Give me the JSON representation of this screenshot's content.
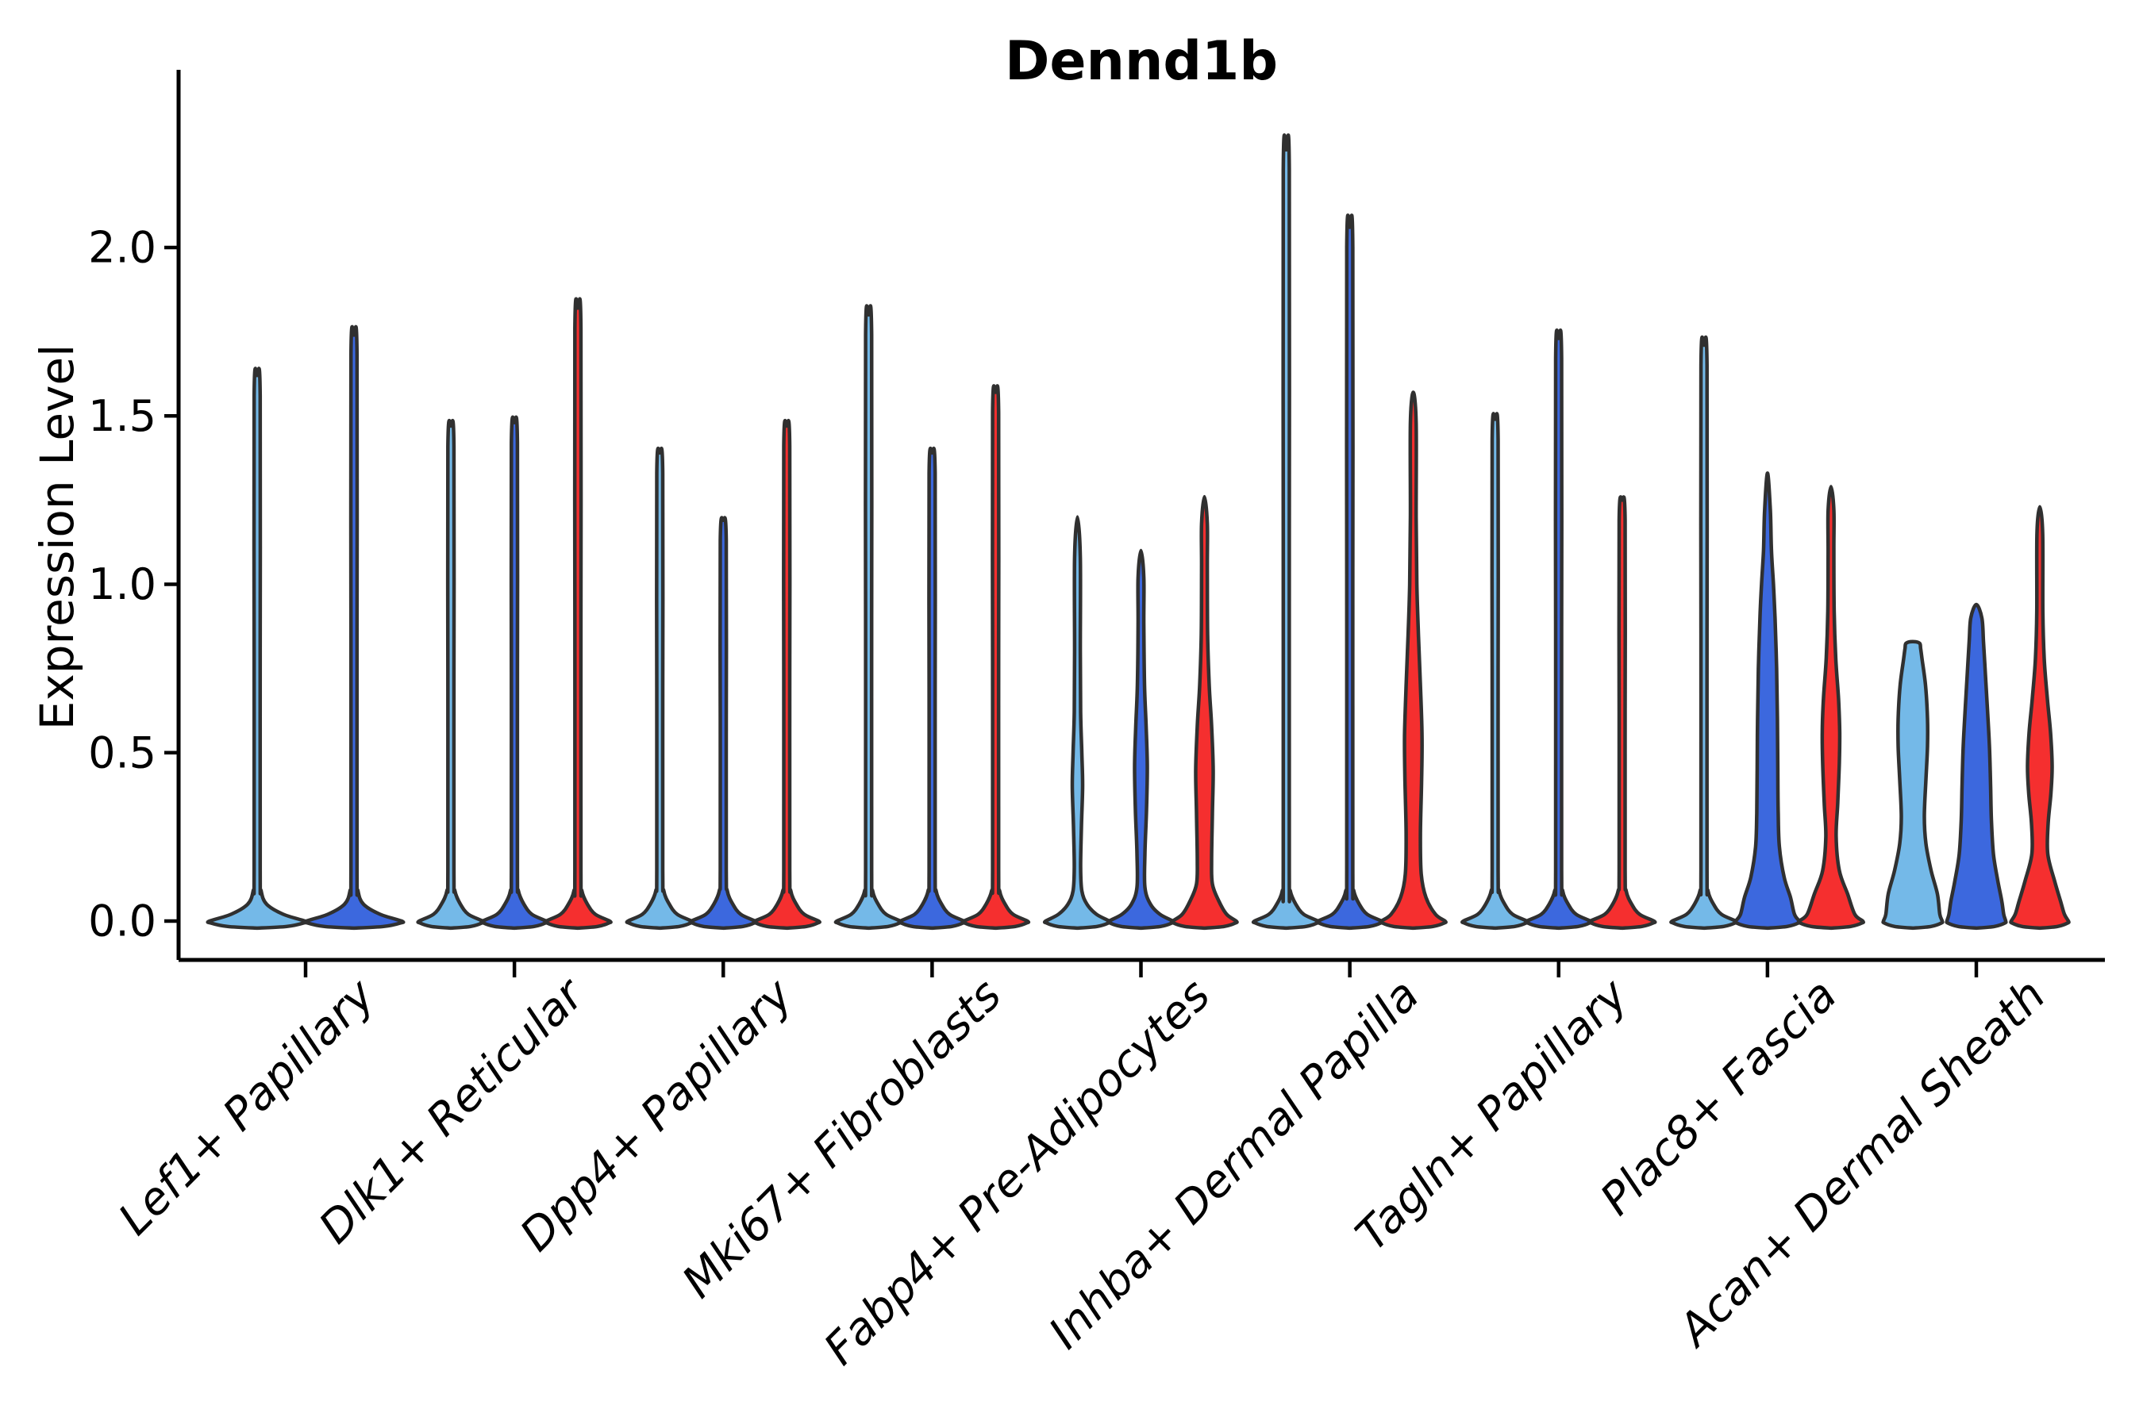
{
  "page": {
    "background": "#ffffff"
  },
  "chart_data": {
    "type": "violin",
    "title": "Dennd1b",
    "ylabel": "Expression Level",
    "xlabel": "",
    "grid": false,
    "legend": "none",
    "yticks": [
      "0.0",
      "0.5",
      "1.0",
      "1.5",
      "2.0"
    ],
    "ytick_values": [
      0.0,
      0.5,
      1.0,
      1.5,
      2.0
    ],
    "ylim": [
      -0.12,
      2.54
    ],
    "palette": {
      "lightblue": "#74b9e8",
      "blue": "#3c68de",
      "red": "#f52f2f",
      "outline": "#303030",
      "axis": "#000000"
    },
    "groups": [
      {
        "label": "Lef1+ Papillary",
        "violins": [
          {
            "color": "lightblue",
            "max": 1.62,
            "base_halfwidth": 60,
            "body": null
          },
          {
            "color": "blue",
            "max": 1.74,
            "base_halfwidth": 60,
            "body": null
          }
        ]
      },
      {
        "label": "Dlk1+ Reticular",
        "violins": [
          {
            "color": "lightblue",
            "max": 1.47,
            "base_halfwidth": 40,
            "body": null
          },
          {
            "color": "blue",
            "max": 1.48,
            "base_halfwidth": 40,
            "body": null
          },
          {
            "color": "red",
            "max": 1.82,
            "base_halfwidth": 40,
            "body": null
          }
        ]
      },
      {
        "label": "Dpp4+ Papillary",
        "violins": [
          {
            "color": "lightblue",
            "max": 1.39,
            "base_halfwidth": 40,
            "body": null
          },
          {
            "color": "blue",
            "max": 1.19,
            "base_halfwidth": 40,
            "body": null
          },
          {
            "color": "red",
            "max": 1.47,
            "base_halfwidth": 40,
            "body": null
          }
        ]
      },
      {
        "label": "Mki67+ Fibroblasts",
        "violins": [
          {
            "color": "lightblue",
            "max": 1.8,
            "base_halfwidth": 40,
            "body": null
          },
          {
            "color": "blue",
            "max": 1.39,
            "base_halfwidth": 40,
            "body": null
          },
          {
            "color": "red",
            "max": 1.57,
            "base_halfwidth": 40,
            "body": null
          }
        ]
      },
      {
        "label": "Fabp4+ Pre-Adipocytes",
        "violins": [
          {
            "color": "lightblue",
            "max": 1.2,
            "base_halfwidth": 40,
            "body": [
              [
                0.02,
                24
              ],
              [
                0.05,
                12
              ],
              [
                0.09,
                5.5
              ],
              [
                0.16,
                4
              ],
              [
                0.28,
                5
              ],
              [
                0.4,
                6.5
              ],
              [
                0.5,
                5.5
              ],
              [
                0.62,
                4
              ],
              [
                0.8,
                3.6
              ],
              [
                1.08,
                3.6
              ],
              [
                1.2,
                0
              ]
            ]
          },
          {
            "color": "blue",
            "max": 1.1,
            "base_halfwidth": 40,
            "body": [
              [
                0.02,
                24
              ],
              [
                0.05,
                12
              ],
              [
                0.1,
                5
              ],
              [
                0.2,
                5
              ],
              [
                0.33,
                7
              ],
              [
                0.46,
                8
              ],
              [
                0.58,
                6.5
              ],
              [
                0.7,
                4.5
              ],
              [
                0.88,
                3.6
              ],
              [
                1.02,
                3.6
              ],
              [
                1.1,
                0
              ]
            ]
          },
          {
            "color": "red",
            "max": 1.26,
            "base_halfwidth": 40,
            "body": [
              [
                0.02,
                28
              ],
              [
                0.06,
                18
              ],
              [
                0.11,
                10
              ],
              [
                0.18,
                9
              ],
              [
                0.32,
                10
              ],
              [
                0.45,
                11
              ],
              [
                0.58,
                9
              ],
              [
                0.7,
                6
              ],
              [
                0.85,
                4
              ],
              [
                1.05,
                3.6
              ],
              [
                1.18,
                3.6
              ],
              [
                1.26,
                0
              ]
            ]
          }
        ]
      },
      {
        "label": "Inhba+ Dermal Papilla",
        "violins": [
          {
            "color": "lightblue",
            "max": 2.29,
            "base_halfwidth": 40,
            "body": null
          },
          {
            "color": "blue",
            "max": 2.06,
            "base_halfwidth": 40,
            "body": null
          },
          {
            "color": "red",
            "max": 1.57,
            "base_halfwidth": 40,
            "body": [
              [
                0.02,
                28
              ],
              [
                0.07,
                16
              ],
              [
                0.14,
                10
              ],
              [
                0.26,
                9
              ],
              [
                0.42,
                10.5
              ],
              [
                0.55,
                11
              ],
              [
                0.7,
                9
              ],
              [
                0.85,
                6.5
              ],
              [
                1.0,
                4.5
              ],
              [
                1.2,
                3.6
              ],
              [
                1.48,
                3.6
              ],
              [
                1.57,
                0
              ]
            ]
          }
        ]
      },
      {
        "label": "Tagln+ Papillary",
        "violins": [
          {
            "color": "lightblue",
            "max": 1.49,
            "base_halfwidth": 40,
            "body": null
          },
          {
            "color": "blue",
            "max": 1.73,
            "base_halfwidth": 40,
            "body": null
          },
          {
            "color": "red",
            "max": 1.25,
            "base_halfwidth": 40,
            "body": null
          }
        ]
      },
      {
        "label": "Plac8+ Fascia",
        "violins": [
          {
            "color": "lightblue",
            "max": 1.71,
            "base_halfwidth": 40,
            "body": null
          },
          {
            "color": "blue",
            "max": 1.33,
            "base_halfwidth": 40,
            "body": [
              [
                0.02,
                34
              ],
              [
                0.07,
                29
              ],
              [
                0.13,
                21
              ],
              [
                0.22,
                15
              ],
              [
                0.32,
                13.5
              ],
              [
                0.45,
                13
              ],
              [
                0.6,
                12.5
              ],
              [
                0.75,
                11.5
              ],
              [
                0.9,
                9.5
              ],
              [
                1.0,
                7.5
              ],
              [
                1.1,
                5
              ],
              [
                1.22,
                3.6
              ],
              [
                1.33,
                0
              ]
            ]
          },
          {
            "color": "red",
            "max": 1.29,
            "base_halfwidth": 40,
            "body": [
              [
                0.02,
                30
              ],
              [
                0.08,
                21
              ],
              [
                0.15,
                10.5
              ],
              [
                0.25,
                6.5
              ],
              [
                0.35,
                8.5
              ],
              [
                0.47,
                10.5
              ],
              [
                0.56,
                11
              ],
              [
                0.66,
                9.5
              ],
              [
                0.78,
                6
              ],
              [
                0.92,
                4
              ],
              [
                1.1,
                3.6
              ],
              [
                1.22,
                3.6
              ],
              [
                1.29,
                0
              ]
            ]
          }
        ]
      },
      {
        "label": "Acan+ Dermal Sheath",
        "violins": [
          {
            "color": "lightblue",
            "max": 0.83,
            "base_halfwidth": 37,
            "body": [
              [
                0.02,
                34
              ],
              [
                0.08,
                31
              ],
              [
                0.15,
                23
              ],
              [
                0.23,
                16.5
              ],
              [
                0.31,
                14.5
              ],
              [
                0.42,
                16.5
              ],
              [
                0.52,
                18.5
              ],
              [
                0.6,
                18.5
              ],
              [
                0.7,
                16
              ],
              [
                0.78,
                11.5
              ],
              [
                0.81,
                9.8
              ],
              [
                0.825,
                8.5
              ],
              [
                0.83,
                0
              ]
            ]
          },
          {
            "color": "blue",
            "max": 0.94,
            "base_halfwidth": 37,
            "body": [
              [
                0.02,
                34.5
              ],
              [
                0.06,
                32
              ],
              [
                0.12,
                27
              ],
              [
                0.2,
                21.5
              ],
              [
                0.3,
                19
              ],
              [
                0.4,
                18
              ],
              [
                0.52,
                16.5
              ],
              [
                0.63,
                14
              ],
              [
                0.73,
                11.5
              ],
              [
                0.83,
                9
              ],
              [
                0.9,
                7
              ],
              [
                0.94,
                0
              ]
            ]
          },
          {
            "color": "red",
            "max": 1.23,
            "base_halfwidth": 36,
            "body": [
              [
                0.02,
                31
              ],
              [
                0.06,
                26
              ],
              [
                0.12,
                18.5
              ],
              [
                0.2,
                10
              ],
              [
                0.29,
                10.5
              ],
              [
                0.38,
                14
              ],
              [
                0.46,
                15.5
              ],
              [
                0.56,
                13.5
              ],
              [
                0.66,
                9.5
              ],
              [
                0.78,
                5.5
              ],
              [
                0.92,
                3.8
              ],
              [
                1.15,
                3.6
              ],
              [
                1.23,
                0
              ]
            ]
          }
        ]
      }
    ]
  }
}
